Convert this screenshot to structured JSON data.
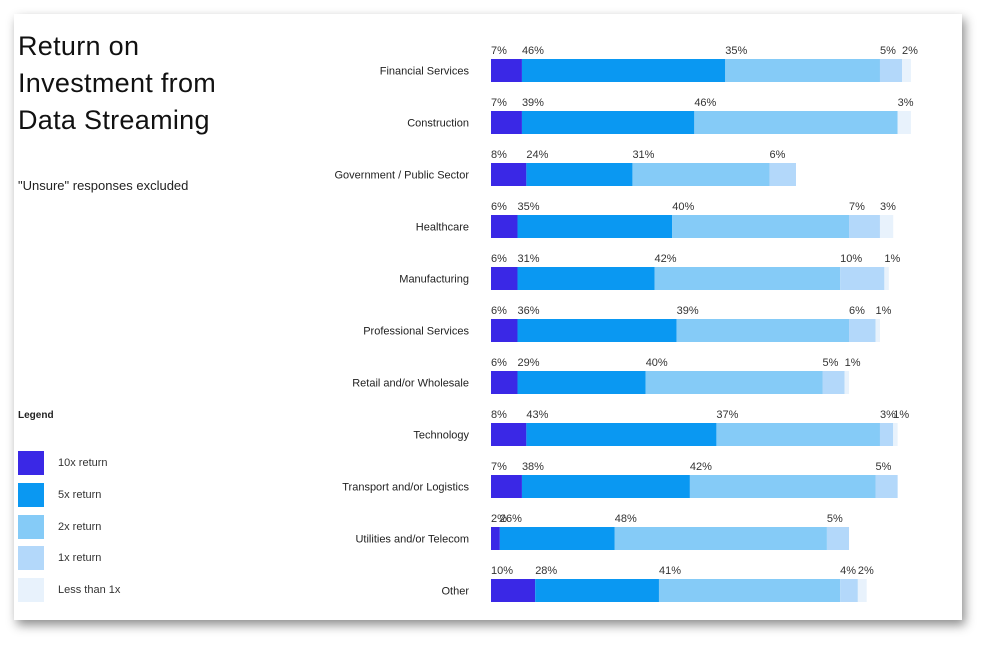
{
  "title": "Return on Investment from Data Streaming",
  "subtitle": "\"Unsure\" responses excluded",
  "legend": {
    "title": "Legend",
    "items": [
      {
        "label": "10x return",
        "color": "#3a28e6"
      },
      {
        "label": "5x return",
        "color": "#0a98f2"
      },
      {
        "label": "2x return",
        "color": "#85cbf7"
      },
      {
        "label": "1x return",
        "color": "#b3d8fa"
      },
      {
        "label": "Less than 1x",
        "color": "#e8f2fc"
      }
    ]
  },
  "chart_data": {
    "type": "bar",
    "orientation": "horizontal",
    "stacked": true,
    "title": "Return on Investment from Data Streaming",
    "categories": [
      "Financial Services",
      "Construction",
      "Government / Public Sector",
      "Healthcare",
      "Manufacturing",
      "Professional Services",
      "Retail and/or Wholesale",
      "Technology",
      "Transport and/or Logistics",
      "Utilities and/or Telecom",
      "Other"
    ],
    "series": [
      {
        "name": "10x return",
        "values": [
          7,
          7,
          8,
          6,
          6,
          6,
          6,
          8,
          7,
          2,
          10
        ]
      },
      {
        "name": "5x return",
        "values": [
          46,
          39,
          24,
          35,
          31,
          36,
          29,
          43,
          38,
          26,
          28
        ]
      },
      {
        "name": "2x return",
        "values": [
          35,
          46,
          31,
          40,
          42,
          39,
          40,
          37,
          42,
          48,
          41
        ]
      },
      {
        "name": "1x return",
        "values": [
          5,
          0,
          6,
          7,
          10,
          6,
          5,
          3,
          5,
          5,
          4
        ]
      },
      {
        "name": "Less than 1x",
        "values": [
          2,
          3,
          0,
          3,
          1,
          1,
          1,
          1,
          0,
          0,
          2
        ]
      }
    ],
    "labels": [
      [
        "7%",
        "46%",
        "35%",
        "5%",
        "2%"
      ],
      [
        "7%",
        "39%",
        "46%",
        "",
        "3%"
      ],
      [
        "8%",
        "24%",
        "31%",
        "6%",
        ""
      ],
      [
        "6%",
        "35%",
        "40%",
        "7%",
        "3%"
      ],
      [
        "6%",
        "31%",
        "42%",
        "10%",
        "1%"
      ],
      [
        "6%",
        "36%",
        "39%",
        "6%",
        "1%"
      ],
      [
        "6%",
        "29%",
        "40%",
        "5%",
        "1%"
      ],
      [
        "8%",
        "43%",
        "37%",
        "3%",
        "1%"
      ],
      [
        "7%",
        "38%",
        "42%",
        "5%",
        ""
      ],
      [
        "2%",
        "26%",
        "48%",
        "5%",
        ""
      ],
      [
        "10%",
        "28%",
        "41%",
        "4%",
        "2%"
      ]
    ],
    "colors": [
      "#3a28e6",
      "#0a98f2",
      "#85cbf7",
      "#b3d8fa",
      "#e8f2fc"
    ],
    "xlim": [
      0,
      100
    ],
    "grid": false,
    "legend_position": "bottom-left"
  }
}
